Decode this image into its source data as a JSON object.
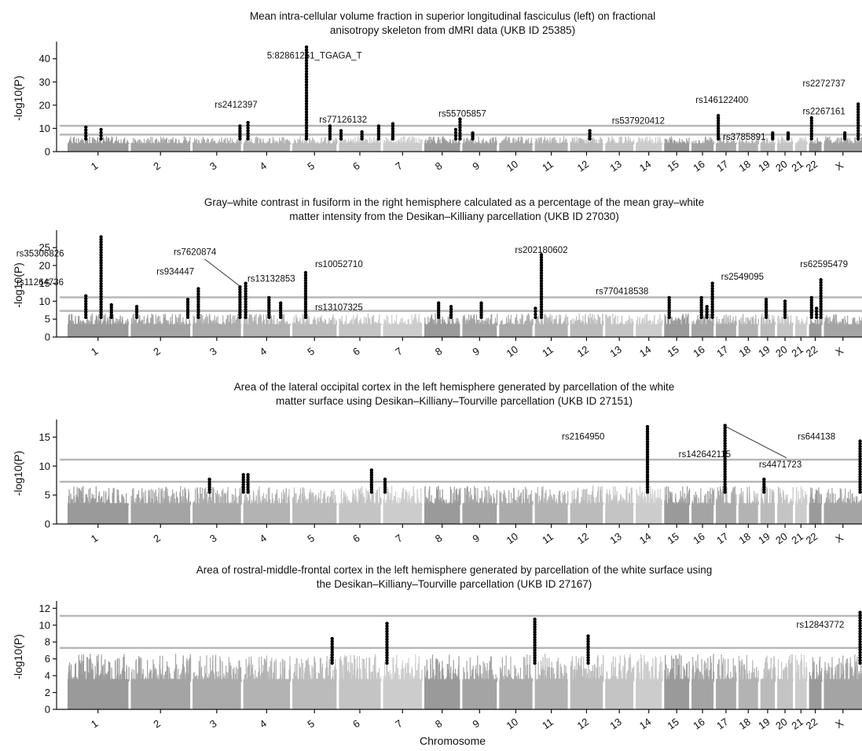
{
  "x_axis_title": "Chromosome",
  "colors": {
    "threshold": "#b8b8b8",
    "hit": "#000000",
    "background_shades": [
      "#9a9a9a",
      "#a4a4a4",
      "#ababab",
      "#b3b3b3",
      "#bbbbbb",
      "#c4c4c4",
      "#cccccc"
    ]
  },
  "chart_data": [
    {
      "type": "scatter",
      "title_line1": "Mean intra-cellular volume fraction in superior longitudinal fasciculus (left) on fractional",
      "title_line2": "anisotropy skeleton from dMRI data (UKB ID 25385)",
      "ylabel": "-log10(P)",
      "ylim": [
        0,
        46
      ],
      "yticks": [
        0,
        10,
        20,
        30,
        40
      ],
      "thresholds": [
        7.3,
        11.1
      ],
      "hits": [
        {
          "chr": "1",
          "pos": 0.3,
          "peak": 10.5
        },
        {
          "chr": "1",
          "pos": 0.55,
          "peak": 9.5
        },
        {
          "chr": "3",
          "pos": 0.98,
          "peak": 11
        },
        {
          "chr": "4",
          "pos": 0.1,
          "peak": 12.5
        },
        {
          "chr": "5",
          "pos": 0.32,
          "peak": 45
        },
        {
          "chr": "5",
          "pos": 0.85,
          "peak": 11
        },
        {
          "chr": "6",
          "pos": 0.05,
          "peak": 9
        },
        {
          "chr": "6",
          "pos": 0.55,
          "peak": 8.5
        },
        {
          "chr": "6",
          "pos": 0.95,
          "peak": 11
        },
        {
          "chr": "7",
          "pos": 0.25,
          "peak": 12
        },
        {
          "chr": "8",
          "pos": 0.88,
          "peak": 9.5
        },
        {
          "chr": "8",
          "pos": 1.0,
          "peak": 14
        },
        {
          "chr": "9",
          "pos": 0.3,
          "peak": 8
        },
        {
          "chr": "12",
          "pos": 0.6,
          "peak": 9
        },
        {
          "chr": "17",
          "pos": 0.12,
          "peak": 15.5
        },
        {
          "chr": "19",
          "pos": 0.85,
          "peak": 8
        },
        {
          "chr": "20",
          "pos": 0.7,
          "peak": 8
        },
        {
          "chr": "22",
          "pos": 0.2,
          "peak": 14.5
        },
        {
          "chr": "X",
          "pos": 0.55,
          "peak": 8
        },
        {
          "chr": "X",
          "pos": 0.9,
          "peak": 20.5
        }
      ],
      "annotations": [
        {
          "text": "5:82861251_TGAGA_T",
          "chr": "5",
          "pos": 0.5,
          "y": 40
        },
        {
          "text": "rs2412397",
          "chr": "3",
          "pos": 0.9,
          "y": 19
        },
        {
          "text": "rs77126132",
          "chr": "6",
          "pos": 0.1,
          "y": 12.5
        },
        {
          "text": "rs55705857",
          "chr": "9",
          "pos": 0.0,
          "y": 15
        },
        {
          "text": "rs537920412",
          "chr": "14",
          "pos": 0.1,
          "y": 12
        },
        {
          "text": "rs146122400",
          "chr": "17",
          "pos": 0.3,
          "y": 21
        },
        {
          "text": "rs3785891",
          "chr": "18",
          "pos": 0.3,
          "y": 5
        },
        {
          "text": "rs2272737",
          "chr": "22",
          "pos": 1.2,
          "y": 28
        },
        {
          "text": "rs2267161",
          "chr": "22",
          "pos": 1.2,
          "y": 16
        }
      ]
    },
    {
      "type": "scatter",
      "title_line1": "Gray–white contrast in fusiform in the right hemisphere calculated as a percentage of the mean gray–white",
      "title_line2": "matter intensity from the Desikan–Killiany parcellation (UKB ID 27030)",
      "ylabel": "-log10(P)",
      "ylim": [
        0,
        29
      ],
      "yticks": [
        0,
        5,
        10,
        15,
        20,
        25
      ],
      "thresholds": [
        7.3,
        11.1
      ],
      "hits": [
        {
          "chr": "1",
          "pos": 0.3,
          "peak": 11.5
        },
        {
          "chr": "1",
          "pos": 0.55,
          "peak": 28
        },
        {
          "chr": "1",
          "pos": 0.72,
          "peak": 9
        },
        {
          "chr": "2",
          "pos": 0.1,
          "peak": 8.5
        },
        {
          "chr": "2",
          "pos": 0.96,
          "peak": 10.5
        },
        {
          "chr": "3",
          "pos": 0.12,
          "peak": 13.5
        },
        {
          "chr": "3",
          "pos": 0.98,
          "peak": 14
        },
        {
          "chr": "4",
          "pos": 0.05,
          "peak": 15
        },
        {
          "chr": "4",
          "pos": 0.55,
          "peak": 11
        },
        {
          "chr": "4",
          "pos": 0.8,
          "peak": 9.5
        },
        {
          "chr": "5",
          "pos": 0.3,
          "peak": 18
        },
        {
          "chr": "8",
          "pos": 0.4,
          "peak": 9.5
        },
        {
          "chr": "8",
          "pos": 0.75,
          "peak": 8.5
        },
        {
          "chr": "9",
          "pos": 0.55,
          "peak": 9.5
        },
        {
          "chr": "11",
          "pos": 0.02,
          "peak": 8
        },
        {
          "chr": "11",
          "pos": 0.2,
          "peak": 23
        },
        {
          "chr": "15",
          "pos": 0.2,
          "peak": 11
        },
        {
          "chr": "16",
          "pos": 0.45,
          "peak": 11
        },
        {
          "chr": "16",
          "pos": 0.7,
          "peak": 8.5
        },
        {
          "chr": "16",
          "pos": 0.95,
          "peak": 15
        },
        {
          "chr": "19",
          "pos": 0.4,
          "peak": 10.5
        },
        {
          "chr": "20",
          "pos": 0.5,
          "peak": 10
        },
        {
          "chr": "22",
          "pos": 0.2,
          "peak": 11
        },
        {
          "chr": "22",
          "pos": 0.6,
          "peak": 8
        },
        {
          "chr": "22",
          "pos": 0.95,
          "peak": 16
        }
      ],
      "annotations": [
        {
          "text": "rs35306826",
          "chr": "1",
          "pos": -0.45,
          "y": 22.5
        },
        {
          "text": "rs11264736",
          "chr": "1",
          "pos": -0.45,
          "y": 14.5
        },
        {
          "text": "rs934447",
          "chr": "2",
          "pos": 0.75,
          "y": 17.5
        },
        {
          "text": "rs7620874",
          "chr": "3",
          "pos": 0.05,
          "y": 23
        },
        {
          "text": "rs13132853",
          "chr": "4",
          "pos": 0.6,
          "y": 15.5
        },
        {
          "text": "rs10052710",
          "chr": "6",
          "pos": 0.0,
          "y": 19.5
        },
        {
          "text": "rs13107325",
          "chr": "6",
          "pos": 0.0,
          "y": 7.5
        },
        {
          "text": "rs202180602",
          "chr": "11",
          "pos": 0.2,
          "y": 23.5
        },
        {
          "text": "rs770418538",
          "chr": "13",
          "pos": 0.6,
          "y": 12
        },
        {
          "text": "rs2549095",
          "chr": "18",
          "pos": 0.2,
          "y": 16
        },
        {
          "text": "rs62595479",
          "chr": "22",
          "pos": 1.2,
          "y": 19.5
        }
      ],
      "leaders": [
        {
          "from_chr": "3",
          "from_pos": 0.25,
          "from_y": 21.8,
          "to_chr": "3",
          "to_pos": 0.98,
          "to_y": 14.2
        }
      ]
    },
    {
      "type": "scatter",
      "title_line1": "Area of the lateral occipital cortex in the left hemisphere generated by parcellation of the white",
      "title_line2": "matter surface using Desikan–Killiany–Tourville parcellation (UKB ID 27151)",
      "ylabel": "-log10(P)",
      "ylim": [
        0,
        17.5
      ],
      "yticks": [
        0,
        5,
        10,
        15
      ],
      "thresholds": [
        7.3,
        11.1
      ],
      "hits": [
        {
          "chr": "3",
          "pos": 0.35,
          "peak": 7.7
        },
        {
          "chr": "3",
          "pos": 1.05,
          "peak": 8.5
        },
        {
          "chr": "4",
          "pos": 0.1,
          "peak": 8.5
        },
        {
          "chr": "6",
          "pos": 0.78,
          "peak": 9.3
        },
        {
          "chr": "7",
          "pos": 0.05,
          "peak": 7.7
        },
        {
          "chr": "14",
          "pos": 0.45,
          "peak": 16.8
        },
        {
          "chr": "17",
          "pos": 0.45,
          "peak": 17
        },
        {
          "chr": "19",
          "pos": 0.25,
          "peak": 7.7
        },
        {
          "chr": "X",
          "pos": 0.95,
          "peak": 14.3
        }
      ],
      "annotations": [
        {
          "text": "rs2164950",
          "chr": "12",
          "pos": 0.4,
          "y": 14.6
        },
        {
          "text": "rs142642115",
          "chr": "16",
          "pos": 0.6,
          "y": 11.5
        },
        {
          "text": "rs644138",
          "chr": "22",
          "pos": 0.6,
          "y": 14.6
        },
        {
          "text": "rs4471723",
          "chr": "20",
          "pos": 0.2,
          "y": 9.8
        }
      ],
      "leaders": [
        {
          "from_chr": "17",
          "from_pos": 0.5,
          "from_y": 16.8,
          "to_chr": "20",
          "to_pos": 0.6,
          "to_y": 11.4
        }
      ]
    },
    {
      "type": "scatter",
      "title_line1": "Area of rostral-middle-frontal cortex in the left hemisphere generated by parcellation of the white surface using",
      "title_line2": "the Desikan–Killiany–Tourville parcellation (UKB ID 27167)",
      "ylabel": "-log10(P)",
      "ylim": [
        0,
        12.5
      ],
      "yticks": [
        0,
        2,
        4,
        6,
        8,
        10,
        12
      ],
      "thresholds": [
        7.3,
        11.1
      ],
      "hits": [
        {
          "chr": "5",
          "pos": 0.9,
          "peak": 8.4
        },
        {
          "chr": "7",
          "pos": 0.1,
          "peak": 10.2
        },
        {
          "chr": "11",
          "pos": 0.0,
          "peak": 10.7
        },
        {
          "chr": "12",
          "pos": 0.55,
          "peak": 8.7
        },
        {
          "chr": "X",
          "pos": 0.95,
          "peak": 11.5
        }
      ],
      "annotations": [
        {
          "text": "rs12843772",
          "chr": "22",
          "pos": 0.9,
          "y": 9.7
        }
      ]
    }
  ],
  "chromosomes": [
    "1",
    "2",
    "3",
    "4",
    "5",
    "6",
    "7",
    "8",
    "9",
    "10",
    "11",
    "12",
    "13",
    "14",
    "15",
    "16",
    "17",
    "18",
    "19",
    "20",
    "21",
    "22",
    "X"
  ]
}
